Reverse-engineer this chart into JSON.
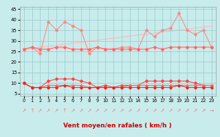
{
  "xlabel": "Vent moyen/en rafales ( km/h )",
  "ylim": [
    4,
    46
  ],
  "xlim": [
    -0.5,
    23.5
  ],
  "yticks": [
    5,
    10,
    15,
    20,
    25,
    30,
    35,
    40,
    45
  ],
  "xticks": [
    0,
    1,
    2,
    3,
    4,
    5,
    6,
    7,
    8,
    9,
    10,
    11,
    12,
    13,
    14,
    15,
    16,
    17,
    18,
    19,
    20,
    21,
    22,
    23
  ],
  "bg_color": "#c8ecec",
  "grid_color": "#a0cccc",
  "series": [
    {
      "name": "rafales_jagged",
      "color": "#ff8888",
      "lw": 0.8,
      "marker": "D",
      "ms": 2.0,
      "data": [
        26,
        27,
        24,
        39,
        35,
        39,
        37,
        35,
        24,
        27,
        26,
        26,
        27,
        27,
        26,
        35,
        32,
        35,
        36,
        43,
        35,
        33,
        35,
        27
      ]
    },
    {
      "name": "rafales_trend",
      "color": "#ffbbbb",
      "lw": 0.9,
      "marker": null,
      "ms": 0,
      "data": [
        26,
        26.5,
        27.0,
        27.4,
        27.9,
        28.4,
        28.9,
        29.3,
        29.8,
        30.3,
        30.8,
        31.2,
        31.7,
        32.2,
        32.7,
        33.1,
        33.6,
        34.1,
        34.6,
        35.0,
        35.5,
        36.0,
        36.5,
        36.9
      ]
    },
    {
      "name": "moyen_flat",
      "color": "#ff6666",
      "lw": 0.8,
      "marker": "D",
      "ms": 2.0,
      "data": [
        26,
        27,
        26,
        26,
        27,
        27,
        26,
        26,
        26,
        27,
        26,
        26,
        26,
        26,
        26,
        26,
        27,
        26,
        27,
        27,
        27,
        27,
        27,
        27
      ]
    },
    {
      "name": "moyen_trend",
      "color": "#ffcccc",
      "lw": 0.9,
      "marker": null,
      "ms": 0,
      "data": [
        26,
        26.1,
        26.1,
        26.2,
        26.2,
        26.3,
        26.3,
        26.4,
        26.4,
        26.4,
        26.5,
        26.5,
        26.6,
        26.6,
        26.6,
        26.7,
        26.7,
        26.8,
        26.8,
        26.9,
        26.9,
        26.9,
        27.0,
        27.0
      ]
    },
    {
      "name": "low_rafales",
      "color": "#ff4444",
      "lw": 0.8,
      "marker": "D",
      "ms": 2.0,
      "data": [
        10,
        8,
        8,
        11,
        12,
        12,
        12,
        11,
        10,
        8,
        9,
        8,
        9,
        9,
        9,
        11,
        11,
        11,
        11,
        11,
        11,
        10,
        9,
        9
      ]
    },
    {
      "name": "low_moyen",
      "color": "#ff6666",
      "lw": 0.8,
      "marker": "D",
      "ms": 1.8,
      "data": [
        10,
        8,
        8,
        9,
        9,
        9,
        9,
        9,
        8,
        8,
        8,
        8,
        8,
        9,
        9,
        9,
        9,
        9,
        9,
        9,
        9,
        9,
        9,
        9
      ]
    },
    {
      "name": "low_min",
      "color": "#ee2222",
      "lw": 0.8,
      "marker": "D",
      "ms": 1.8,
      "data": [
        10,
        8,
        8,
        8,
        8,
        9,
        8,
        8,
        8,
        8,
        8,
        8,
        8,
        8,
        8,
        8,
        8,
        8,
        8,
        9,
        8,
        8,
        8,
        8
      ]
    }
  ],
  "arrows": [
    "↗",
    "↑",
    "↗",
    "↗",
    "↗",
    "↑",
    "↗",
    "↗",
    "↗",
    "↗",
    "↗",
    "↗",
    "↗",
    "↗",
    "↗",
    "↗",
    "↗",
    "↗",
    "↗",
    "↗",
    "↗",
    "↗",
    "↗",
    "→"
  ]
}
